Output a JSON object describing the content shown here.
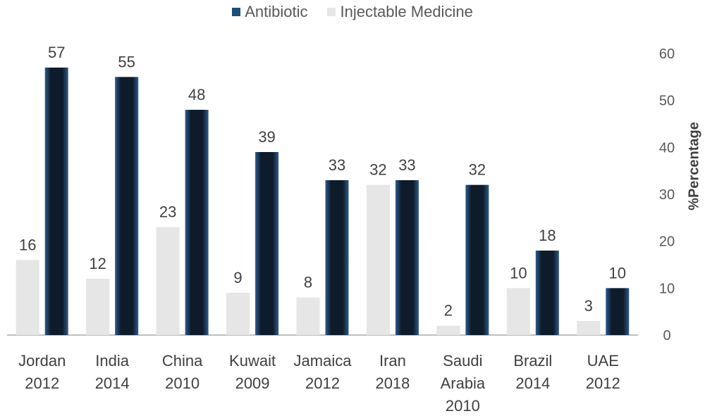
{
  "colors": {
    "antibiotic": "#0d1b2a",
    "antibiotic_edge": "#2e5a8a",
    "injectable": "#e6e6e6",
    "axis": "#bfbfbf",
    "text": "#404040"
  },
  "legend": [
    {
      "label": "Antibiotic",
      "color": "#1f4e79"
    },
    {
      "label": "Injectable Medicine",
      "color": "#e6e6e6"
    }
  ],
  "chart_data": {
    "type": "bar",
    "categories": [
      [
        "Jordan",
        "2012"
      ],
      [
        "India",
        "2014"
      ],
      [
        "China",
        "2010"
      ],
      [
        "Kuwait",
        "2009"
      ],
      [
        "Jamaica",
        "2012"
      ],
      [
        "Iran",
        "2018"
      ],
      [
        "Saudi",
        "Arabia",
        "2010"
      ],
      [
        "Brazil",
        "2014"
      ],
      [
        "UAE",
        "2012"
      ]
    ],
    "series": [
      {
        "name": "Injectable Medicine",
        "values": [
          16,
          12,
          23,
          9,
          8,
          32,
          2,
          10,
          3
        ]
      },
      {
        "name": "Antibiotic",
        "values": [
          57,
          55,
          48,
          39,
          33,
          33,
          32,
          18,
          10
        ]
      }
    ],
    "ylabel": "%Percentage",
    "xlabel": "",
    "ylim": [
      0,
      60
    ],
    "yticks": [
      0,
      10,
      20,
      30,
      40,
      50,
      60
    ],
    "y_axis_side": "right",
    "legend_position": "top-center",
    "grid": false
  }
}
